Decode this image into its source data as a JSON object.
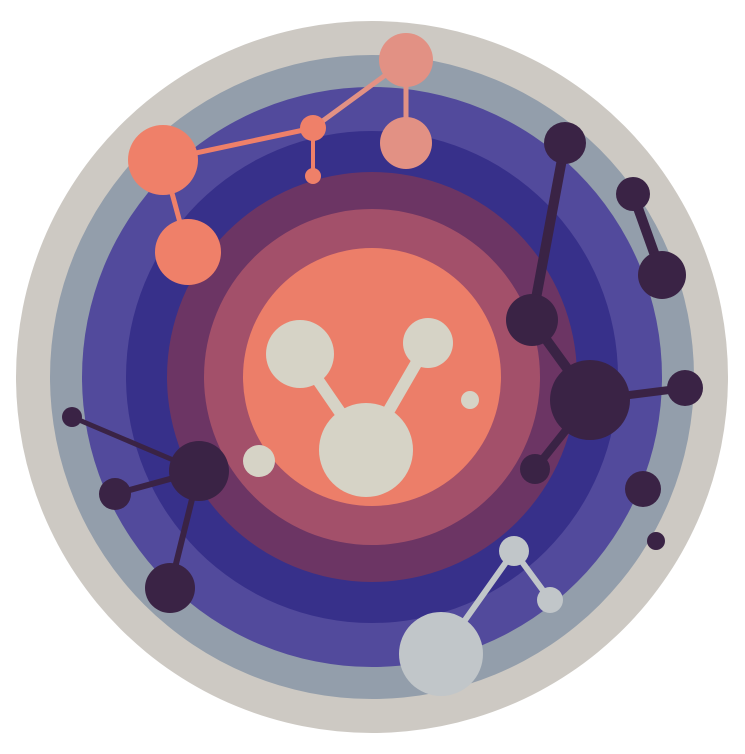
{
  "palette": {
    "background": "#ffffff",
    "ring_outer": "#cdc9c3",
    "ring_steel": "#939eab",
    "ring_violet": "#524a9c",
    "ring_indigo": "#37308a",
    "ring_plum": "#6c3564",
    "ring_rose": "#a3506a",
    "core_coral": "#ec7e69",
    "molecule_cream": "#d6d3c6",
    "molecule_salmon": "#ef8069",
    "molecule_pink": "#e29184",
    "molecule_dark": "#3a2345",
    "molecule_silver": "#c1c6c9"
  },
  "illustration": {
    "subject": "concentric-rings-with-molecules",
    "molecule_groups": [
      "core-molecule",
      "salmon-molecule-top-left",
      "dark-molecule-right",
      "dark-molecule-left",
      "silver-molecule-bottom"
    ]
  }
}
